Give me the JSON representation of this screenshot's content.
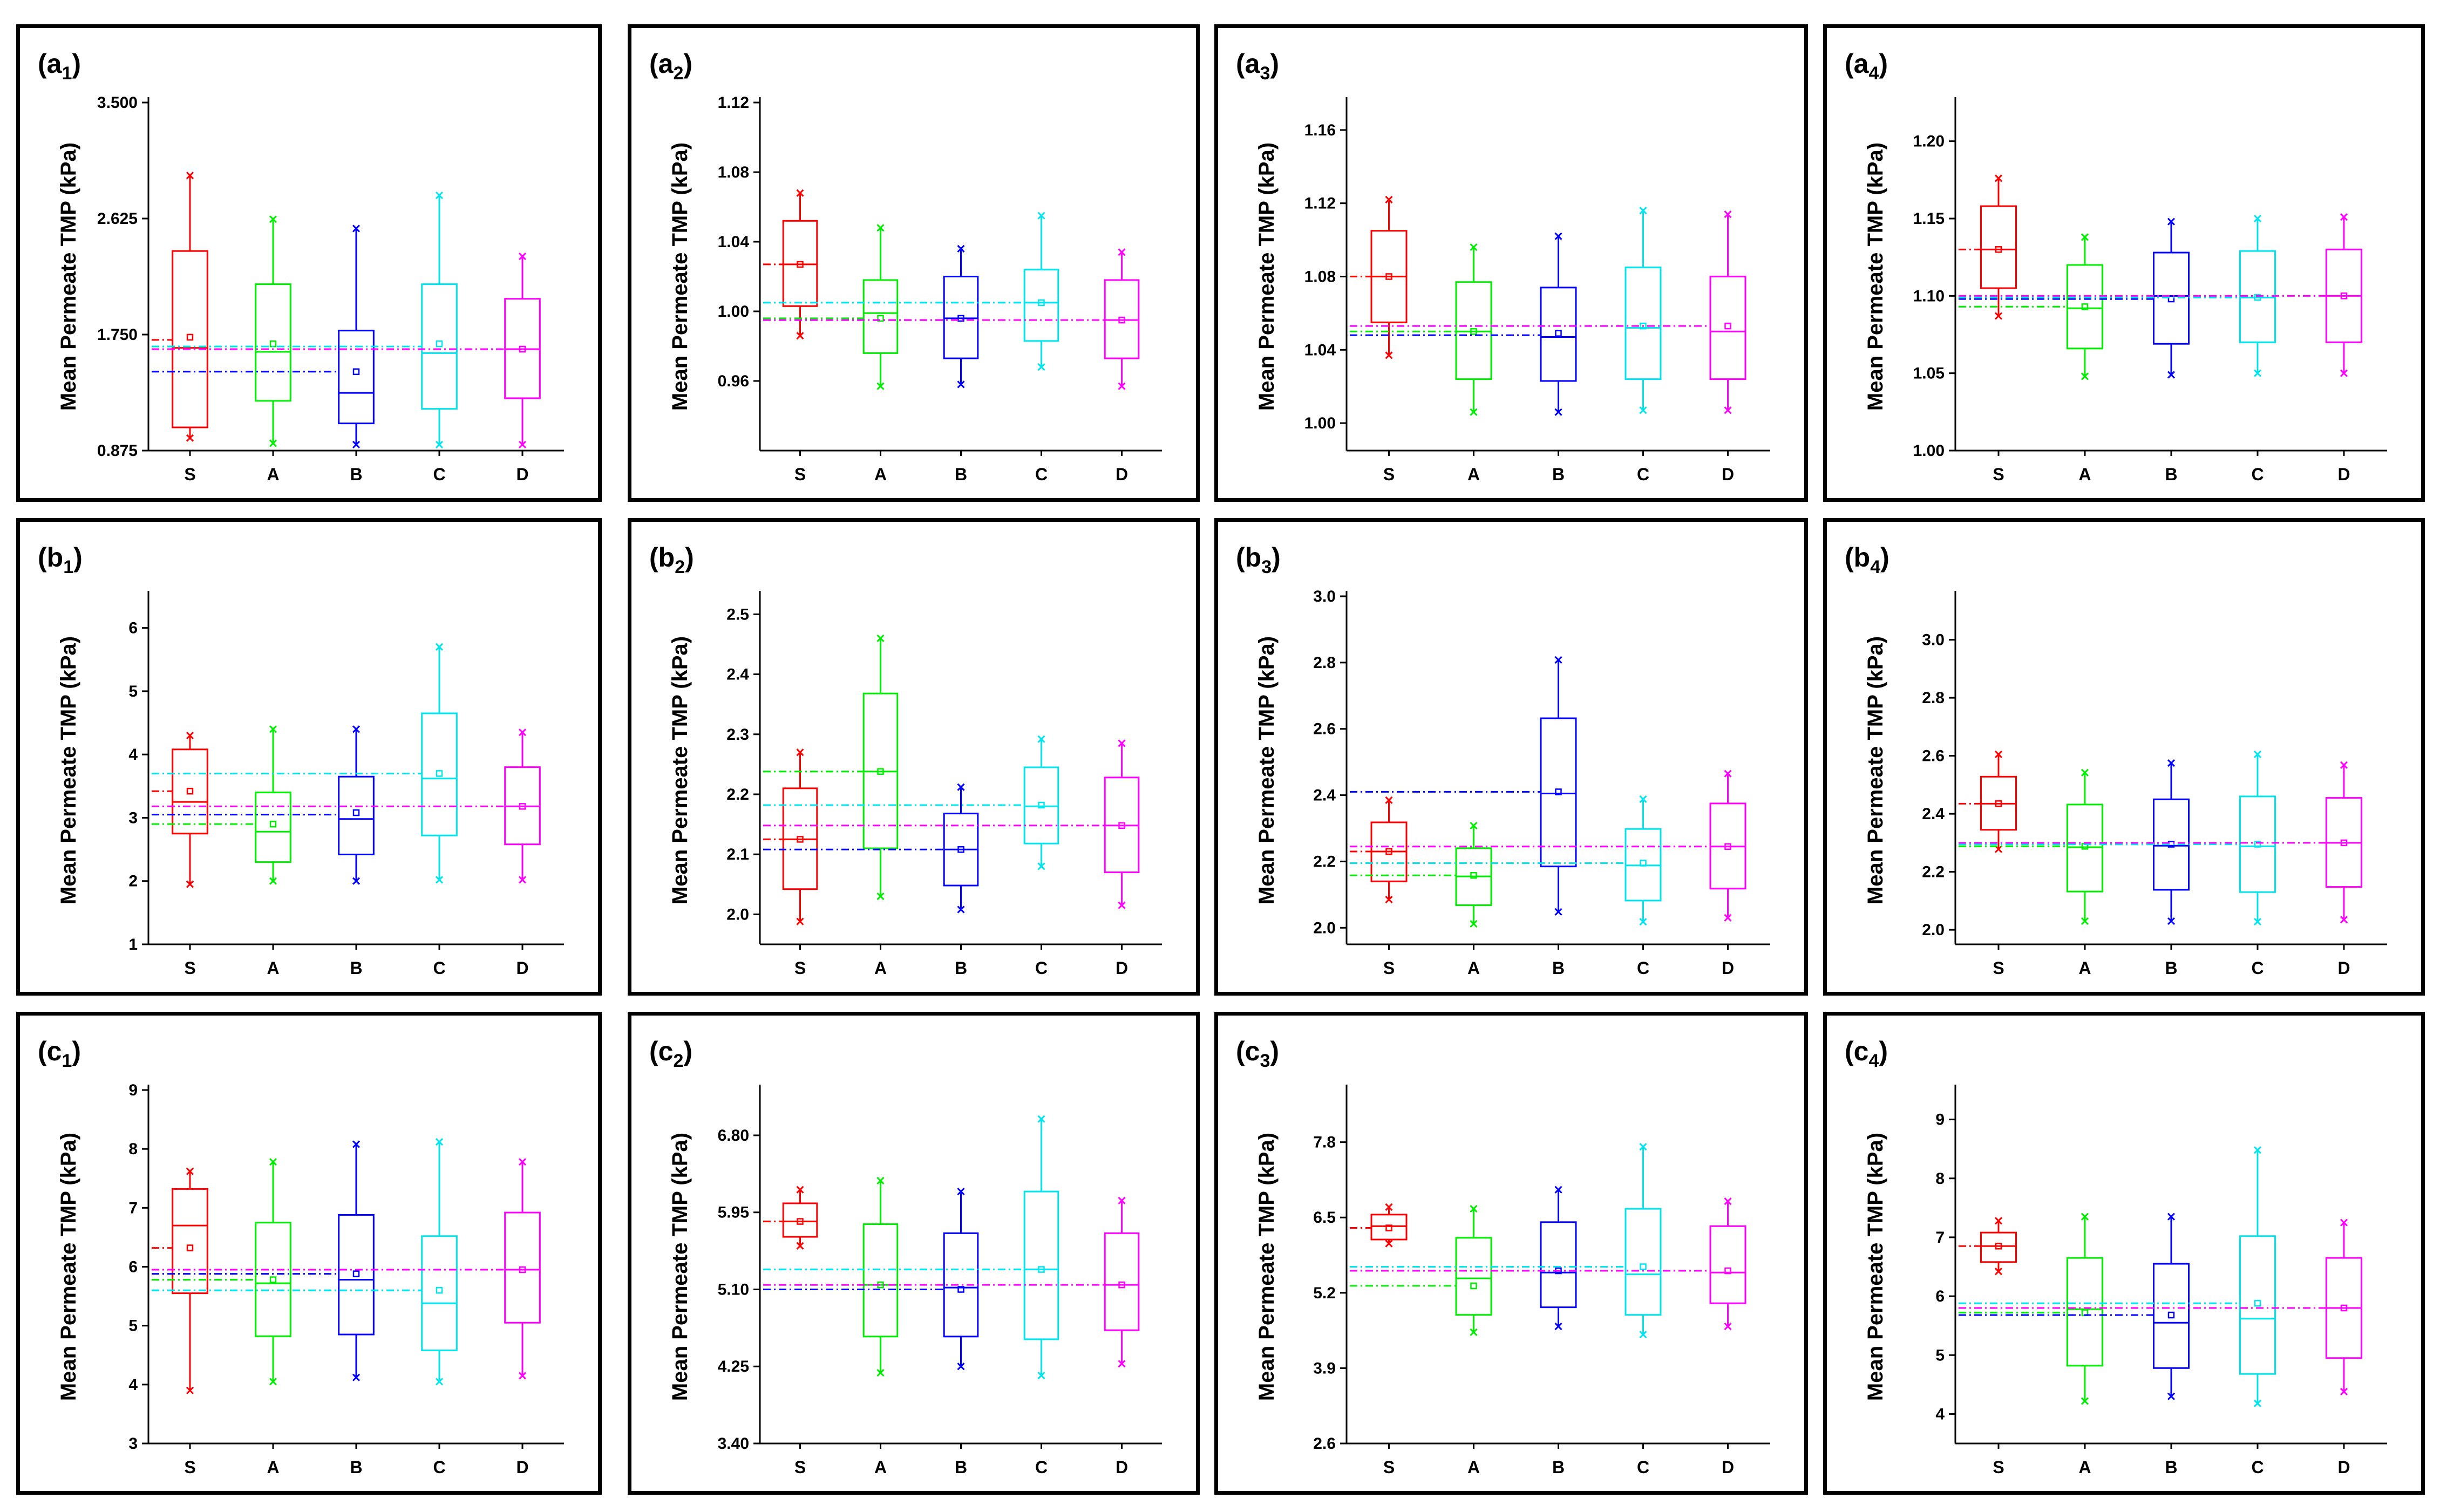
{
  "figure": {
    "y_axis_label": "Mean Permeate TMP (kPa)",
    "categories": [
      "S",
      "A",
      "B",
      "C",
      "D"
    ],
    "series_colors": [
      "#ff0000",
      "#00ee00",
      "#0000ff",
      "#00e5ee",
      "#ff00ff"
    ]
  },
  "chart_data": [
    {
      "id": "a1",
      "label": "a",
      "sub": "1",
      "type": "box",
      "ylabel": "Mean Permeate TMP (kPa)",
      "categories": [
        "S",
        "A",
        "B",
        "C",
        "D"
      ],
      "ylim": [
        0.875,
        3.5
      ],
      "yticks": [
        "0.875",
        "1.750",
        "2.625",
        "3.500"
      ],
      "boxes": [
        {
          "q1": 1.05,
          "median": 1.65,
          "q3": 2.38,
          "whisker_low": 0.97,
          "whisker_high": 2.95,
          "mean": 1.73,
          "mean_line": 1.71
        },
        {
          "q1": 1.25,
          "median": 1.62,
          "q3": 2.13,
          "whisker_low": 0.93,
          "whisker_high": 2.62,
          "mean": 1.68,
          "mean_line": 1.66
        },
        {
          "q1": 1.08,
          "median": 1.31,
          "q3": 1.78,
          "whisker_low": 0.92,
          "whisker_high": 2.55,
          "mean": 1.47,
          "mean_line": 1.47
        },
        {
          "q1": 1.19,
          "median": 1.61,
          "q3": 2.13,
          "whisker_low": 0.92,
          "whisker_high": 2.8,
          "mean": 1.68,
          "mean_line": 1.66
        },
        {
          "q1": 1.27,
          "median": 1.64,
          "q3": 2.02,
          "whisker_low": 0.92,
          "whisker_high": 2.34,
          "mean": 1.64,
          "mean_line": 1.64
        }
      ]
    },
    {
      "id": "a2",
      "label": "a",
      "sub": "2",
      "type": "box",
      "ylabel": "Mean Permeate TMP (kPa)",
      "categories": [
        "S",
        "A",
        "B",
        "C",
        "D"
      ],
      "ylim": [
        0.92,
        1.12
      ],
      "yticks": [
        "0.96",
        "1.00",
        "1.04",
        "1.08",
        "1.12"
      ],
      "boxes": [
        {
          "q1": 1.003,
          "median": 1.027,
          "q3": 1.052,
          "whisker_low": 0.986,
          "whisker_high": 1.068,
          "mean": 1.027,
          "mean_line": 1.027
        },
        {
          "q1": 0.976,
          "median": 0.999,
          "q3": 1.018,
          "whisker_low": 0.957,
          "whisker_high": 1.048,
          "mean": 0.996,
          "mean_line": 0.996
        },
        {
          "q1": 0.973,
          "median": 0.996,
          "q3": 1.02,
          "whisker_low": 0.958,
          "whisker_high": 1.036,
          "mean": 0.996,
          "mean_line": 0.995
        },
        {
          "q1": 0.983,
          "median": 1.005,
          "q3": 1.024,
          "whisker_low": 0.968,
          "whisker_high": 1.055,
          "mean": 1.005,
          "mean_line": 1.005
        },
        {
          "q1": 0.973,
          "median": 0.995,
          "q3": 1.018,
          "whisker_low": 0.957,
          "whisker_high": 1.034,
          "mean": 0.995,
          "mean_line": 0.995
        }
      ]
    },
    {
      "id": "a3",
      "label": "a",
      "sub": "3",
      "type": "box",
      "ylabel": "Mean Permeate TMP (kPa)",
      "categories": [
        "S",
        "A",
        "B",
        "C",
        "D"
      ],
      "ylim": [
        0.985,
        1.175
      ],
      "yticks": [
        "1.00",
        "1.04",
        "1.08",
        "1.12",
        "1.16"
      ],
      "boxes": [
        {
          "q1": 1.055,
          "median": 1.08,
          "q3": 1.105,
          "whisker_low": 1.037,
          "whisker_high": 1.122,
          "mean": 1.08,
          "mean_line": 1.08
        },
        {
          "q1": 1.024,
          "median": 1.05,
          "q3": 1.077,
          "whisker_low": 1.006,
          "whisker_high": 1.096,
          "mean": 1.05,
          "mean_line": 1.05
        },
        {
          "q1": 1.023,
          "median": 1.047,
          "q3": 1.074,
          "whisker_low": 1.006,
          "whisker_high": 1.102,
          "mean": 1.049,
          "mean_line": 1.048
        },
        {
          "q1": 1.024,
          "median": 1.052,
          "q3": 1.085,
          "whisker_low": 1.007,
          "whisker_high": 1.116,
          "mean": 1.053,
          "mean_line": 1.053
        },
        {
          "q1": 1.024,
          "median": 1.05,
          "q3": 1.08,
          "whisker_low": 1.007,
          "whisker_high": 1.114,
          "mean": 1.053,
          "mean_line": 1.053
        }
      ]
    },
    {
      "id": "a4",
      "label": "a",
      "sub": "4",
      "type": "box",
      "ylabel": "Mean Permeate TMP (kPa)",
      "categories": [
        "S",
        "A",
        "B",
        "C",
        "D"
      ],
      "ylim": [
        1.0,
        1.225
      ],
      "yticks": [
        "1.00",
        "1.05",
        "1.10",
        "1.15",
        "1.20"
      ],
      "boxes": [
        {
          "q1": 1.105,
          "median": 1.13,
          "q3": 1.158,
          "whisker_low": 1.087,
          "whisker_high": 1.176,
          "mean": 1.13,
          "mean_line": 1.13
        },
        {
          "q1": 1.066,
          "median": 1.092,
          "q3": 1.12,
          "whisker_low": 1.048,
          "whisker_high": 1.138,
          "mean": 1.093,
          "mean_line": 1.093
        },
        {
          "q1": 1.069,
          "median": 1.1,
          "q3": 1.128,
          "whisker_low": 1.049,
          "whisker_high": 1.148,
          "mean": 1.098,
          "mean_line": 1.098
        },
        {
          "q1": 1.07,
          "median": 1.099,
          "q3": 1.129,
          "whisker_low": 1.05,
          "whisker_high": 1.15,
          "mean": 1.099,
          "mean_line": 1.099
        },
        {
          "q1": 1.07,
          "median": 1.1,
          "q3": 1.13,
          "whisker_low": 1.05,
          "whisker_high": 1.151,
          "mean": 1.1,
          "mean_line": 1.1
        }
      ]
    },
    {
      "id": "b1",
      "label": "b",
      "sub": "1",
      "type": "box",
      "ylabel": "Mean Permeate TMP (kPa)",
      "categories": [
        "S",
        "A",
        "B",
        "C",
        "D"
      ],
      "ylim": [
        1,
        6.5
      ],
      "yticks": [
        "1",
        "2",
        "3",
        "4",
        "5",
        "6"
      ],
      "boxes": [
        {
          "q1": 2.75,
          "median": 3.25,
          "q3": 4.08,
          "whisker_low": 1.95,
          "whisker_high": 4.3,
          "mean": 3.42,
          "mean_line": 3.42
        },
        {
          "q1": 2.3,
          "median": 2.78,
          "q3": 3.4,
          "whisker_low": 2.0,
          "whisker_high": 4.4,
          "mean": 2.9,
          "mean_line": 2.9
        },
        {
          "q1": 2.42,
          "median": 2.98,
          "q3": 3.65,
          "whisker_low": 2.0,
          "whisker_high": 4.4,
          "mean": 3.08,
          "mean_line": 3.05
        },
        {
          "q1": 2.72,
          "median": 3.62,
          "q3": 4.65,
          "whisker_low": 2.02,
          "whisker_high": 5.7,
          "mean": 3.7,
          "mean_line": 3.7
        },
        {
          "q1": 2.58,
          "median": 3.18,
          "q3": 3.8,
          "whisker_low": 2.02,
          "whisker_high": 4.35,
          "mean": 3.18,
          "mean_line": 3.18
        }
      ]
    },
    {
      "id": "b2",
      "label": "b",
      "sub": "2",
      "type": "box",
      "ylabel": "Mean Permeate TMP (kPa)",
      "categories": [
        "S",
        "A",
        "B",
        "C",
        "D"
      ],
      "ylim": [
        1.95,
        2.53
      ],
      "yticks": [
        "2.0",
        "2.1",
        "2.2",
        "2.3",
        "2.4",
        "2.5"
      ],
      "boxes": [
        {
          "q1": 2.042,
          "median": 2.125,
          "q3": 2.21,
          "whisker_low": 1.988,
          "whisker_high": 2.27,
          "mean": 2.125,
          "mean_line": 2.125
        },
        {
          "q1": 2.11,
          "median": 2.238,
          "q3": 2.368,
          "whisker_low": 2.03,
          "whisker_high": 2.46,
          "mean": 2.238,
          "mean_line": 2.238
        },
        {
          "q1": 2.048,
          "median": 2.108,
          "q3": 2.168,
          "whisker_low": 2.008,
          "whisker_high": 2.212,
          "mean": 2.108,
          "mean_line": 2.108
        },
        {
          "q1": 2.118,
          "median": 2.18,
          "q3": 2.245,
          "whisker_low": 2.08,
          "whisker_high": 2.292,
          "mean": 2.182,
          "mean_line": 2.182
        },
        {
          "q1": 2.07,
          "median": 2.148,
          "q3": 2.228,
          "whisker_low": 2.015,
          "whisker_high": 2.285,
          "mean": 2.148,
          "mean_line": 2.148
        }
      ]
    },
    {
      "id": "b3",
      "label": "b",
      "sub": "3",
      "type": "box",
      "ylabel": "Mean Permeate TMP (kPa)",
      "categories": [
        "S",
        "A",
        "B",
        "C",
        "D"
      ],
      "ylim": [
        1.95,
        3.0
      ],
      "yticks": [
        "2.0",
        "2.2",
        "2.4",
        "2.6",
        "2.8",
        "3.0"
      ],
      "boxes": [
        {
          "q1": 2.14,
          "median": 2.23,
          "q3": 2.318,
          "whisker_low": 2.085,
          "whisker_high": 2.385,
          "mean": 2.23,
          "mean_line": 2.23
        },
        {
          "q1": 2.068,
          "median": 2.155,
          "q3": 2.24,
          "whisker_low": 2.012,
          "whisker_high": 2.308,
          "mean": 2.158,
          "mean_line": 2.158
        },
        {
          "q1": 2.185,
          "median": 2.405,
          "q3": 2.632,
          "whisker_low": 2.048,
          "whisker_high": 2.808,
          "mean": 2.41,
          "mean_line": 2.41
        },
        {
          "q1": 2.082,
          "median": 2.188,
          "q3": 2.298,
          "whisker_low": 2.018,
          "whisker_high": 2.388,
          "mean": 2.195,
          "mean_line": 2.195
        },
        {
          "q1": 2.118,
          "median": 2.245,
          "q3": 2.375,
          "whisker_low": 2.03,
          "whisker_high": 2.465,
          "mean": 2.245,
          "mean_line": 2.245
        }
      ]
    },
    {
      "id": "b4",
      "label": "b",
      "sub": "4",
      "type": "box",
      "ylabel": "Mean Permeate TMP (kPa)",
      "categories": [
        "S",
        "A",
        "B",
        "C",
        "D"
      ],
      "ylim": [
        1.95,
        3.15
      ],
      "yticks": [
        "2.0",
        "2.2",
        "2.4",
        "2.6",
        "2.8",
        "3.0"
      ],
      "boxes": [
        {
          "q1": 2.345,
          "median": 2.435,
          "q3": 2.528,
          "whisker_low": 2.278,
          "whisker_high": 2.605,
          "mean": 2.435,
          "mean_line": 2.435
        },
        {
          "q1": 2.132,
          "median": 2.285,
          "q3": 2.432,
          "whisker_low": 2.03,
          "whisker_high": 2.542,
          "mean": 2.288,
          "mean_line": 2.288
        },
        {
          "q1": 2.138,
          "median": 2.29,
          "q3": 2.45,
          "whisker_low": 2.03,
          "whisker_high": 2.575,
          "mean": 2.295,
          "mean_line": 2.295
        },
        {
          "q1": 2.13,
          "median": 2.288,
          "q3": 2.46,
          "whisker_low": 2.028,
          "whisker_high": 2.605,
          "mean": 2.295,
          "mean_line": 2.295
        },
        {
          "q1": 2.148,
          "median": 2.3,
          "q3": 2.455,
          "whisker_low": 2.035,
          "whisker_high": 2.568,
          "mean": 2.3,
          "mean_line": 2.3
        }
      ]
    },
    {
      "id": "c1",
      "label": "c",
      "sub": "1",
      "type": "box",
      "ylabel": "Mean Permeate TMP (kPa)",
      "categories": [
        "S",
        "A",
        "B",
        "C",
        "D"
      ],
      "ylim": [
        3,
        9
      ],
      "yticks": [
        "3",
        "4",
        "5",
        "6",
        "7",
        "8",
        "9"
      ],
      "boxes": [
        {
          "q1": 5.55,
          "median": 6.7,
          "q3": 7.32,
          "whisker_low": 3.9,
          "whisker_high": 7.62,
          "mean": 6.32,
          "mean_line": 6.32
        },
        {
          "q1": 4.82,
          "median": 5.72,
          "q3": 6.75,
          "whisker_low": 4.05,
          "whisker_high": 7.78,
          "mean": 5.78,
          "mean_line": 5.78
        },
        {
          "q1": 4.85,
          "median": 5.78,
          "q3": 6.88,
          "whisker_low": 4.12,
          "whisker_high": 8.08,
          "mean": 5.88,
          "mean_line": 5.88
        },
        {
          "q1": 4.58,
          "median": 5.38,
          "q3": 6.52,
          "whisker_low": 4.05,
          "whisker_high": 8.12,
          "mean": 5.6,
          "mean_line": 5.6
        },
        {
          "q1": 5.05,
          "median": 5.95,
          "q3": 6.92,
          "whisker_low": 4.15,
          "whisker_high": 7.78,
          "mean": 5.95,
          "mean_line": 5.95
        }
      ]
    },
    {
      "id": "c2",
      "label": "c",
      "sub": "2",
      "type": "box",
      "ylabel": "Mean Permeate TMP (kPa)",
      "categories": [
        "S",
        "A",
        "B",
        "C",
        "D"
      ],
      "ylim": [
        3.4,
        7.3
      ],
      "yticks": [
        "3.40",
        "4.25",
        "5.10",
        "5.95",
        "6.80"
      ],
      "boxes": [
        {
          "q1": 5.68,
          "median": 5.85,
          "q3": 6.05,
          "whisker_low": 5.58,
          "whisker_high": 6.2,
          "mean": 5.85,
          "mean_line": 5.85
        },
        {
          "q1": 4.58,
          "median": 5.15,
          "q3": 5.82,
          "whisker_low": 4.18,
          "whisker_high": 6.3,
          "mean": 5.15,
          "mean_line": 5.15
        },
        {
          "q1": 4.58,
          "median": 5.12,
          "q3": 5.72,
          "whisker_low": 4.25,
          "whisker_high": 6.18,
          "mean": 5.1,
          "mean_line": 5.1
        },
        {
          "q1": 4.55,
          "median": 5.32,
          "q3": 6.18,
          "whisker_low": 4.15,
          "whisker_high": 6.98,
          "mean": 5.32,
          "mean_line": 5.32
        },
        {
          "q1": 4.65,
          "median": 5.15,
          "q3": 5.72,
          "whisker_low": 4.28,
          "whisker_high": 6.08,
          "mean": 5.15,
          "mean_line": 5.15
        }
      ]
    },
    {
      "id": "c3",
      "label": "c",
      "sub": "3",
      "type": "box",
      "ylabel": "Mean Permeate TMP (kPa)",
      "categories": [
        "S",
        "A",
        "B",
        "C",
        "D"
      ],
      "ylim": [
        2.6,
        8.7
      ],
      "yticks": [
        "2.6",
        "3.9",
        "5.2",
        "6.5",
        "7.8"
      ],
      "boxes": [
        {
          "q1": 6.12,
          "median": 6.35,
          "q3": 6.55,
          "whisker_low": 6.05,
          "whisker_high": 6.68,
          "mean": 6.32,
          "mean_line": 6.32
        },
        {
          "q1": 4.82,
          "median": 5.45,
          "q3": 6.15,
          "whisker_low": 4.52,
          "whisker_high": 6.65,
          "mean": 5.32,
          "mean_line": 5.32
        },
        {
          "q1": 4.95,
          "median": 5.55,
          "q3": 6.42,
          "whisker_low": 4.62,
          "whisker_high": 6.98,
          "mean": 5.58,
          "mean_line": 5.58
        },
        {
          "q1": 4.82,
          "median": 5.52,
          "q3": 6.65,
          "whisker_low": 4.48,
          "whisker_high": 7.72,
          "mean": 5.65,
          "mean_line": 5.65
        },
        {
          "q1": 5.02,
          "median": 5.55,
          "q3": 6.35,
          "whisker_low": 4.62,
          "whisker_high": 6.78,
          "mean": 5.58,
          "mean_line": 5.58
        }
      ]
    },
    {
      "id": "c4",
      "label": "c",
      "sub": "4",
      "type": "box",
      "ylabel": "Mean Permeate TMP (kPa)",
      "categories": [
        "S",
        "A",
        "B",
        "C",
        "D"
      ],
      "ylim": [
        3.5,
        9.5
      ],
      "yticks": [
        "4",
        "5",
        "6",
        "7",
        "8",
        "9"
      ],
      "boxes": [
        {
          "q1": 6.58,
          "median": 6.85,
          "q3": 7.08,
          "whisker_low": 6.42,
          "whisker_high": 7.28,
          "mean": 6.85,
          "mean_line": 6.85
        },
        {
          "q1": 4.82,
          "median": 5.78,
          "q3": 6.65,
          "whisker_low": 4.22,
          "whisker_high": 7.35,
          "mean": 5.72,
          "mean_line": 5.72
        },
        {
          "q1": 4.78,
          "median": 5.55,
          "q3": 6.55,
          "whisker_low": 4.3,
          "whisker_high": 7.35,
          "mean": 5.68,
          "mean_line": 5.68
        },
        {
          "q1": 4.68,
          "median": 5.62,
          "q3": 7.02,
          "whisker_low": 4.18,
          "whisker_high": 8.48,
          "mean": 5.88,
          "mean_line": 5.88
        },
        {
          "q1": 4.95,
          "median": 5.8,
          "q3": 6.65,
          "whisker_low": 4.38,
          "whisker_high": 7.25,
          "mean": 5.8,
          "mean_line": 5.8
        }
      ]
    }
  ]
}
